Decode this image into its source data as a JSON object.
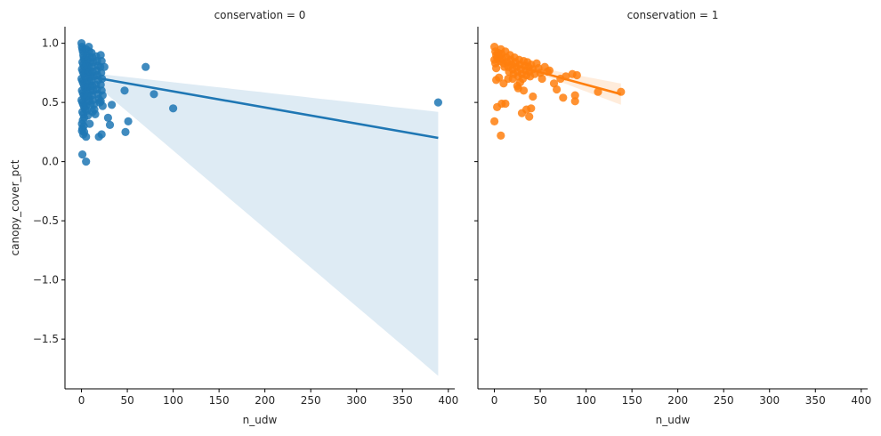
{
  "figure": {
    "ylabel": "canopy_cover_pct",
    "xlabel": "n_udw"
  },
  "chart_data": [
    {
      "type": "scatter",
      "title": "conservation = 0",
      "xlabel": "n_udw",
      "ylabel": "canopy_cover_pct",
      "xlim": [
        -18,
        407
      ],
      "ylim": [
        -1.92,
        1.14
      ],
      "xticks": [
        0,
        50,
        100,
        150,
        200,
        250,
        300,
        350,
        400
      ],
      "yticks": [
        -1.5,
        -1.0,
        -0.5,
        0.0,
        0.5,
        1.0
      ],
      "yticklabels": [
        "−1.5",
        "−1.0",
        "−0.5",
        "0.0",
        "0.5",
        "1.0"
      ],
      "color": "#1f77b4",
      "band_color": "#1f77b4",
      "regression": {
        "x": [
          0,
          389
        ],
        "y": [
          0.73,
          0.2
        ]
      },
      "ci_band": {
        "x": [
          0,
          20,
          389
        ],
        "lower": [
          0.66,
          0.62,
          -1.81
        ],
        "upper": [
          0.8,
          0.74,
          0.42
        ]
      },
      "points": [
        [
          0.0,
          1.0
        ],
        [
          0.5,
          0.97
        ],
        [
          1.0,
          0.95
        ],
        [
          1.5,
          0.93
        ],
        [
          2.0,
          0.9
        ],
        [
          2.5,
          0.88
        ],
        [
          3.0,
          0.86
        ],
        [
          1.0,
          0.84
        ],
        [
          2.0,
          0.82
        ],
        [
          3.0,
          0.8
        ],
        [
          0.5,
          0.78
        ],
        [
          1.5,
          0.76
        ],
        [
          2.5,
          0.74
        ],
        [
          3.5,
          0.72
        ],
        [
          0.0,
          0.7
        ],
        [
          1.0,
          0.68
        ],
        [
          2.0,
          0.66
        ],
        [
          3.0,
          0.64
        ],
        [
          4.0,
          0.62
        ],
        [
          0.5,
          0.6
        ],
        [
          1.5,
          0.58
        ],
        [
          2.5,
          0.56
        ],
        [
          3.5,
          0.54
        ],
        [
          0.0,
          0.52
        ],
        [
          1.0,
          0.5
        ],
        [
          2.0,
          0.48
        ],
        [
          3.0,
          0.46
        ],
        [
          4.0,
          0.44
        ],
        [
          1.0,
          0.42
        ],
        [
          2.0,
          0.4
        ],
        [
          3.0,
          0.37
        ],
        [
          1.5,
          0.35
        ],
        [
          0.5,
          0.32
        ],
        [
          2.5,
          0.3
        ],
        [
          1.0,
          0.28
        ],
        [
          0.5,
          0.26
        ],
        [
          3.0,
          0.25
        ],
        [
          2.0,
          0.23
        ],
        [
          5.0,
          0.95
        ],
        [
          6.0,
          0.9
        ],
        [
          7.0,
          0.86
        ],
        [
          5.5,
          0.82
        ],
        [
          6.5,
          0.78
        ],
        [
          7.5,
          0.75
        ],
        [
          5.0,
          0.71
        ],
        [
          6.0,
          0.67
        ],
        [
          7.0,
          0.63
        ],
        [
          5.5,
          0.59
        ],
        [
          6.5,
          0.55
        ],
        [
          7.5,
          0.51
        ],
        [
          5.0,
          0.47
        ],
        [
          6.0,
          0.43
        ],
        [
          7.0,
          0.39
        ],
        [
          8.0,
          0.97
        ],
        [
          8.5,
          0.93
        ],
        [
          9.0,
          0.88
        ],
        [
          9.5,
          0.84
        ],
        [
          8.0,
          0.8
        ],
        [
          9.0,
          0.76
        ],
        [
          10.0,
          0.72
        ],
        [
          8.5,
          0.68
        ],
        [
          9.5,
          0.64
        ],
        [
          10.0,
          0.6
        ],
        [
          8.0,
          0.56
        ],
        [
          9.0,
          0.52
        ],
        [
          10.0,
          0.48
        ],
        [
          11.0,
          0.92
        ],
        [
          12.0,
          0.88
        ],
        [
          13.0,
          0.84
        ],
        [
          11.5,
          0.8
        ],
        [
          12.5,
          0.76
        ],
        [
          13.5,
          0.72
        ],
        [
          11.0,
          0.68
        ],
        [
          12.0,
          0.64
        ],
        [
          13.0,
          0.6
        ],
        [
          11.5,
          0.56
        ],
        [
          12.5,
          0.52
        ],
        [
          13.5,
          0.48
        ],
        [
          14.0,
          0.44
        ],
        [
          15.0,
          0.4
        ],
        [
          16.0,
          0.89
        ],
        [
          17.0,
          0.85
        ],
        [
          18.0,
          0.81
        ],
        [
          16.5,
          0.77
        ],
        [
          17.5,
          0.73
        ],
        [
          18.5,
          0.69
        ],
        [
          16.0,
          0.65
        ],
        [
          17.0,
          0.61
        ],
        [
          18.0,
          0.57
        ],
        [
          19.0,
          0.53
        ],
        [
          20.0,
          0.5
        ],
        [
          21.0,
          0.9
        ],
        [
          22.0,
          0.85
        ],
        [
          20.5,
          0.8
        ],
        [
          21.5,
          0.75
        ],
        [
          22.5,
          0.7
        ],
        [
          21.0,
          0.65
        ],
        [
          22.0,
          0.6
        ],
        [
          23.0,
          0.56
        ],
        [
          21.0,
          0.51
        ],
        [
          25.0,
          0.8
        ],
        [
          5.0,
          0.0
        ],
        [
          1.0,
          0.06
        ],
        [
          5.0,
          0.21
        ],
        [
          9.0,
          0.32
        ],
        [
          12.0,
          0.42
        ],
        [
          19.0,
          0.21
        ],
        [
          22.0,
          0.23
        ],
        [
          23.0,
          0.47
        ],
        [
          29.0,
          0.37
        ],
        [
          31.0,
          0.31
        ],
        [
          33.0,
          0.48
        ],
        [
          47.0,
          0.6
        ],
        [
          48.0,
          0.25
        ],
        [
          51.0,
          0.34
        ],
        [
          70.0,
          0.8
        ],
        [
          79.0,
          0.57
        ],
        [
          100.0,
          0.45
        ],
        [
          389.0,
          0.5
        ]
      ]
    },
    {
      "type": "scatter",
      "title": "conservation = 1",
      "xlabel": "n_udw",
      "ylabel": "",
      "xlim": [
        -18,
        407
      ],
      "ylim": [
        -1.92,
        1.14
      ],
      "xticks": [
        0,
        50,
        100,
        150,
        200,
        250,
        300,
        350,
        400
      ],
      "yticks": [
        -1.5,
        -1.0,
        -0.5,
        0.0,
        0.5,
        1.0
      ],
      "color": "#ff7f0e",
      "band_color": "#ff7f0e",
      "regression": {
        "x": [
          0,
          138
        ],
        "y": [
          0.86,
          0.57
        ]
      },
      "ci_band": {
        "x": [
          0,
          30,
          70,
          138
        ],
        "lower": [
          0.82,
          0.79,
          0.68,
          0.48
        ],
        "upper": [
          0.9,
          0.85,
          0.76,
          0.66
        ]
      },
      "points": [
        [
          0.0,
          0.97
        ],
        [
          1.0,
          0.93
        ],
        [
          2.0,
          0.9
        ],
        [
          3.0,
          0.88
        ],
        [
          0.0,
          0.86
        ],
        [
          1.0,
          0.83
        ],
        [
          2.0,
          0.79
        ],
        [
          4.0,
          0.92
        ],
        [
          5.0,
          0.89
        ],
        [
          6.0,
          0.85
        ],
        [
          7.0,
          0.95
        ],
        [
          8.0,
          0.91
        ],
        [
          9.0,
          0.87
        ],
        [
          10.0,
          0.83
        ],
        [
          11.0,
          0.8
        ],
        [
          12.0,
          0.93
        ],
        [
          13.0,
          0.88
        ],
        [
          14.0,
          0.84
        ],
        [
          15.0,
          0.8
        ],
        [
          16.0,
          0.76
        ],
        [
          17.0,
          0.9
        ],
        [
          18.0,
          0.86
        ],
        [
          19.0,
          0.82
        ],
        [
          20.0,
          0.78
        ],
        [
          21.0,
          0.74
        ],
        [
          22.0,
          0.88
        ],
        [
          23.0,
          0.84
        ],
        [
          24.0,
          0.8
        ],
        [
          25.0,
          0.76
        ],
        [
          26.0,
          0.72
        ],
        [
          27.0,
          0.86
        ],
        [
          28.0,
          0.82
        ],
        [
          29.0,
          0.78
        ],
        [
          30.0,
          0.74
        ],
        [
          31.0,
          0.7
        ],
        [
          32.0,
          0.85
        ],
        [
          33.0,
          0.81
        ],
        [
          34.0,
          0.77
        ],
        [
          35.0,
          0.73
        ],
        [
          36.0,
          0.84
        ],
        [
          37.0,
          0.8
        ],
        [
          38.0,
          0.76
        ],
        [
          39.0,
          0.72
        ],
        [
          40.0,
          0.82
        ],
        [
          42.0,
          0.78
        ],
        [
          44.0,
          0.74
        ],
        [
          46.0,
          0.83
        ],
        [
          48.0,
          0.79
        ],
        [
          50.0,
          0.75
        ],
        [
          52.0,
          0.7
        ],
        [
          55.0,
          0.8
        ],
        [
          58.0,
          0.76
        ],
        [
          60.0,
          0.77
        ],
        [
          65.0,
          0.66
        ],
        [
          68.0,
          0.61
        ],
        [
          72.0,
          0.7
        ],
        [
          78.0,
          0.72
        ],
        [
          85.0,
          0.74
        ],
        [
          88.0,
          0.56
        ],
        [
          90.0,
          0.73
        ],
        [
          88.0,
          0.51
        ],
        [
          113.0,
          0.59
        ],
        [
          138.0,
          0.59
        ],
        [
          0.0,
          0.34
        ],
        [
          3.0,
          0.46
        ],
        [
          7.0,
          0.22
        ],
        [
          8.0,
          0.49
        ],
        [
          12.0,
          0.49
        ],
        [
          15.0,
          0.7
        ],
        [
          20.0,
          0.7
        ],
        [
          25.0,
          0.64
        ],
        [
          28.0,
          0.67
        ],
        [
          30.0,
          0.41
        ],
        [
          35.0,
          0.44
        ],
        [
          38.0,
          0.38
        ],
        [
          40.0,
          0.45
        ],
        [
          42.0,
          0.55
        ],
        [
          32.0,
          0.6
        ],
        [
          26.0,
          0.62
        ],
        [
          75.0,
          0.54
        ],
        [
          2.0,
          0.69
        ],
        [
          5.0,
          0.71
        ],
        [
          10.0,
          0.66
        ]
      ]
    }
  ]
}
